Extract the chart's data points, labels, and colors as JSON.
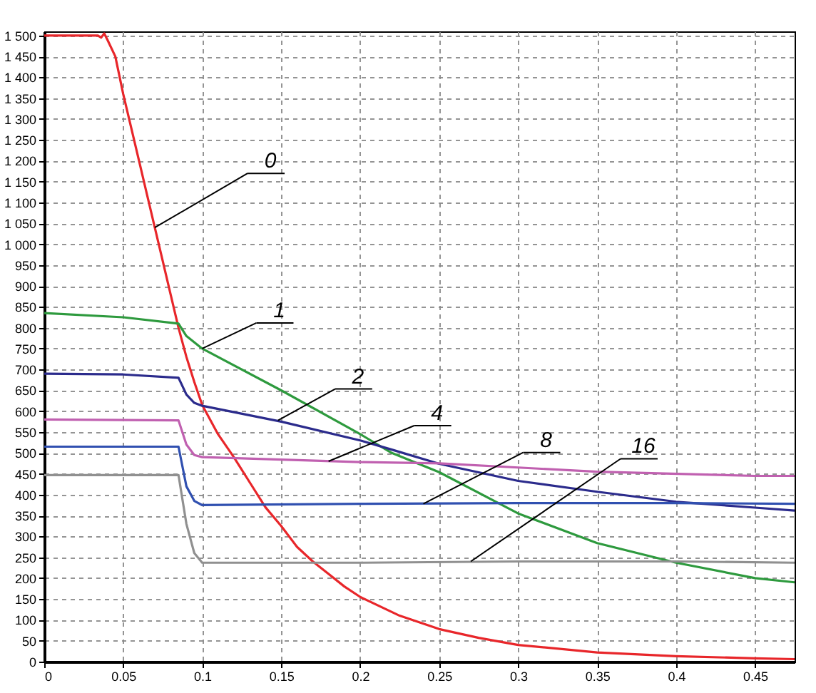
{
  "chart_data": {
    "type": "line",
    "xlim": [
      0,
      0.475
    ],
    "ylim": [
      0,
      1510
    ],
    "xticks": [
      0,
      0.05,
      0.1,
      0.15,
      0.2,
      0.25,
      0.3,
      0.35,
      0.4,
      0.45
    ],
    "yticks": [
      0,
      50,
      100,
      150,
      200,
      250,
      300,
      350,
      400,
      450,
      500,
      550,
      600,
      650,
      700,
      750,
      800,
      850,
      900,
      950,
      {
        "value": 1000,
        "label": "1 000"
      },
      {
        "value": 1050,
        "label": "1 050"
      },
      {
        "value": 1100,
        "label": "1 100"
      },
      {
        "value": 1150,
        "label": "1 150"
      },
      {
        "value": 1200,
        "label": "1 200"
      },
      {
        "value": 1250,
        "label": "1 250"
      },
      {
        "value": 1300,
        "label": "1 300"
      },
      {
        "value": 1350,
        "label": "1 350"
      },
      {
        "value": 1400,
        "label": "1 400"
      },
      {
        "value": 1450,
        "label": "1 450"
      },
      {
        "value": 1500,
        "label": "1 500"
      }
    ],
    "grid": true,
    "line_style": "solid",
    "series": [
      {
        "color": "#e8262a",
        "x": [
          0,
          0.02,
          0.034,
          0.036,
          0.038,
          0.04,
          0.045,
          0.05,
          0.055,
          0.06,
          0.065,
          0.07,
          0.075,
          0.08,
          0.085,
          0.09,
          0.095,
          0.1,
          0.11,
          0.12,
          0.13,
          0.14,
          0.15,
          0.16,
          0.17,
          0.18,
          0.19,
          0.2,
          0.225,
          0.25,
          0.275,
          0.3,
          0.35,
          0.4,
          0.45,
          0.475
        ],
        "values": [
          1500,
          1500,
          1500,
          1495,
          1505,
          1490,
          1450,
          1360,
          1280,
          1200,
          1120,
          1040,
          960,
          880,
          800,
          730,
          670,
          615,
          545,
          490,
          430,
          370,
          325,
          275,
          240,
          210,
          180,
          155,
          110,
          78,
          57,
          40,
          22,
          13,
          8,
          6
        ]
      },
      {
        "color": "#2e9a3e",
        "x": [
          0,
          0.05,
          0.085,
          0.09,
          0.1,
          0.15,
          0.2,
          0.22,
          0.25,
          0.3,
          0.35,
          0.4,
          0.45,
          0.475
        ],
        "values": [
          835,
          825,
          810,
          780,
          750,
          650,
          545,
          500,
          454,
          355,
          284,
          237,
          200,
          190
        ]
      },
      {
        "color": "#2b2b8c",
        "x": [
          0,
          0.05,
          0.085,
          0.09,
          0.095,
          0.1,
          0.15,
          0.2,
          0.22,
          0.25,
          0.3,
          0.35,
          0.4,
          0.45,
          0.475
        ],
        "values": [
          690,
          688,
          680,
          640,
          620,
          613,
          575,
          530,
          508,
          474,
          433,
          407,
          383,
          369,
          362
        ]
      },
      {
        "color": "#c060b0",
        "x": [
          0,
          0.085,
          0.09,
          0.095,
          0.1,
          0.2,
          0.25,
          0.35,
          0.45,
          0.475
        ],
        "values": [
          580,
          578,
          520,
          495,
          490,
          478,
          475,
          455,
          445,
          445
        ]
      },
      {
        "color": "#3050b0",
        "x": [
          0,
          0.085,
          0.09,
          0.095,
          0.1,
          0.2,
          0.3,
          0.4,
          0.475
        ],
        "values": [
          515,
          515,
          420,
          385,
          375,
          378,
          380,
          380,
          378
        ]
      },
      {
        "color": "#909090",
        "x": [
          0,
          0.085,
          0.09,
          0.095,
          0.1,
          0.2,
          0.3,
          0.4,
          0.475
        ],
        "values": [
          447,
          447,
          330,
          260,
          237,
          237,
          240,
          240,
          237
        ]
      }
    ],
    "annotations": [
      {
        "text": "0",
        "x": 0.07,
        "y": 1040
      },
      {
        "text": "1",
        "x": 0.1,
        "y": 750
      },
      {
        "text": "2",
        "x": 0.148,
        "y": 578
      },
      {
        "text": "4",
        "x": 0.18,
        "y": 480
      },
      {
        "text": "8",
        "x": 0.24,
        "y": 378
      },
      {
        "text": "16",
        "x": 0.27,
        "y": 240
      }
    ]
  }
}
